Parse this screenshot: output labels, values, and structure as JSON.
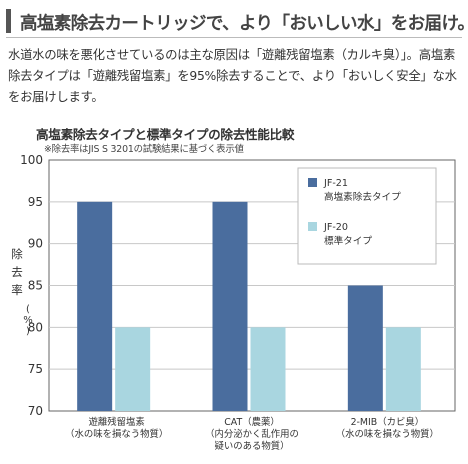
{
  "header": {
    "title": "高塩素除去カートリッジで、より「おいしい水」をお届け。"
  },
  "description": "水道水の味を悪化させているのは主な原因は「遊離残留塩素（カルキ臭）」。高塩素除去タイプは「遊離残留塩素」を95%除去することで、より「おいしく安全」な水をお届けします。",
  "colors": {
    "series_jf21": "#4a6d9e",
    "series_jf20": "#a9d6e0",
    "grid": "#c8c8c8",
    "axis": "#666666"
  },
  "chart_data": {
    "type": "bar",
    "title": "高塩素除去タイプと標準タイプの除去性能比較",
    "note": "※除去率はJIS S 3201の試験結果に基づく表示値",
    "ylabel": "除去率(%)",
    "ylim": [
      70,
      100
    ],
    "yticks": [
      70,
      75,
      80,
      85,
      90,
      95,
      100
    ],
    "grid": true,
    "legend_position": "top-right",
    "categories": [
      [
        "遊離残留塩素",
        "（水の味を損なう物質）"
      ],
      [
        "CAT（農薬）",
        "（内分泌かく乱作用の",
        "疑いのある物質）"
      ],
      [
        "2-MIB（カビ臭）",
        "（水の味を損なう物質）"
      ]
    ],
    "series": [
      {
        "name": "JF-21",
        "subname": "高塩素除去タイプ",
        "color": "#4a6d9e",
        "values": [
          95,
          95,
          85
        ]
      },
      {
        "name": "JF-20",
        "subname": "標準タイプ",
        "color": "#a9d6e0",
        "values": [
          80,
          80,
          80
        ]
      }
    ]
  }
}
